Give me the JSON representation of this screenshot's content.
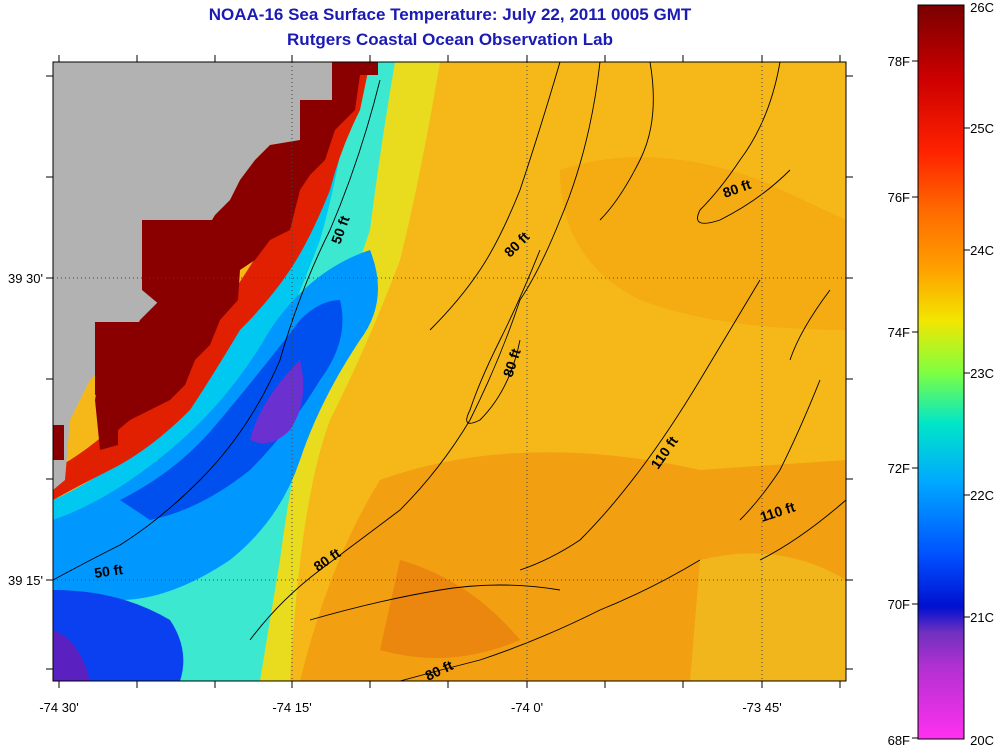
{
  "title": "NOAA-16 Sea Surface Temperature:  July 22, 2011 0005 GMT",
  "subtitle": "Rutgers Coastal Ocean Observation Lab",
  "axes": {
    "x_ticks": [
      "-74 30'",
      "-74 15'",
      "-74 0'",
      "-73 45'"
    ],
    "y_ticks": [
      "39 30'",
      "39 15'"
    ]
  },
  "contour_labels": [
    {
      "text": "50 ft"
    },
    {
      "text": "50 ft"
    },
    {
      "text": "80 ft"
    },
    {
      "text": "80 ft"
    },
    {
      "text": "80 ft"
    },
    {
      "text": "80 ft"
    },
    {
      "text": "80 ft"
    },
    {
      "text": "110 ft"
    },
    {
      "text": "110 ft"
    }
  ],
  "colorbar": {
    "celsius_labels": [
      "26C",
      "25C",
      "24C",
      "23C",
      "22C",
      "21C",
      "20C"
    ],
    "fahrenheit_labels": [
      "78F",
      "76F",
      "74F",
      "72F",
      "70F",
      "68F"
    ],
    "range_c": [
      20,
      26
    ]
  },
  "colors": {
    "land": "#b2b2b2",
    "title": "#1a1ab4"
  }
}
